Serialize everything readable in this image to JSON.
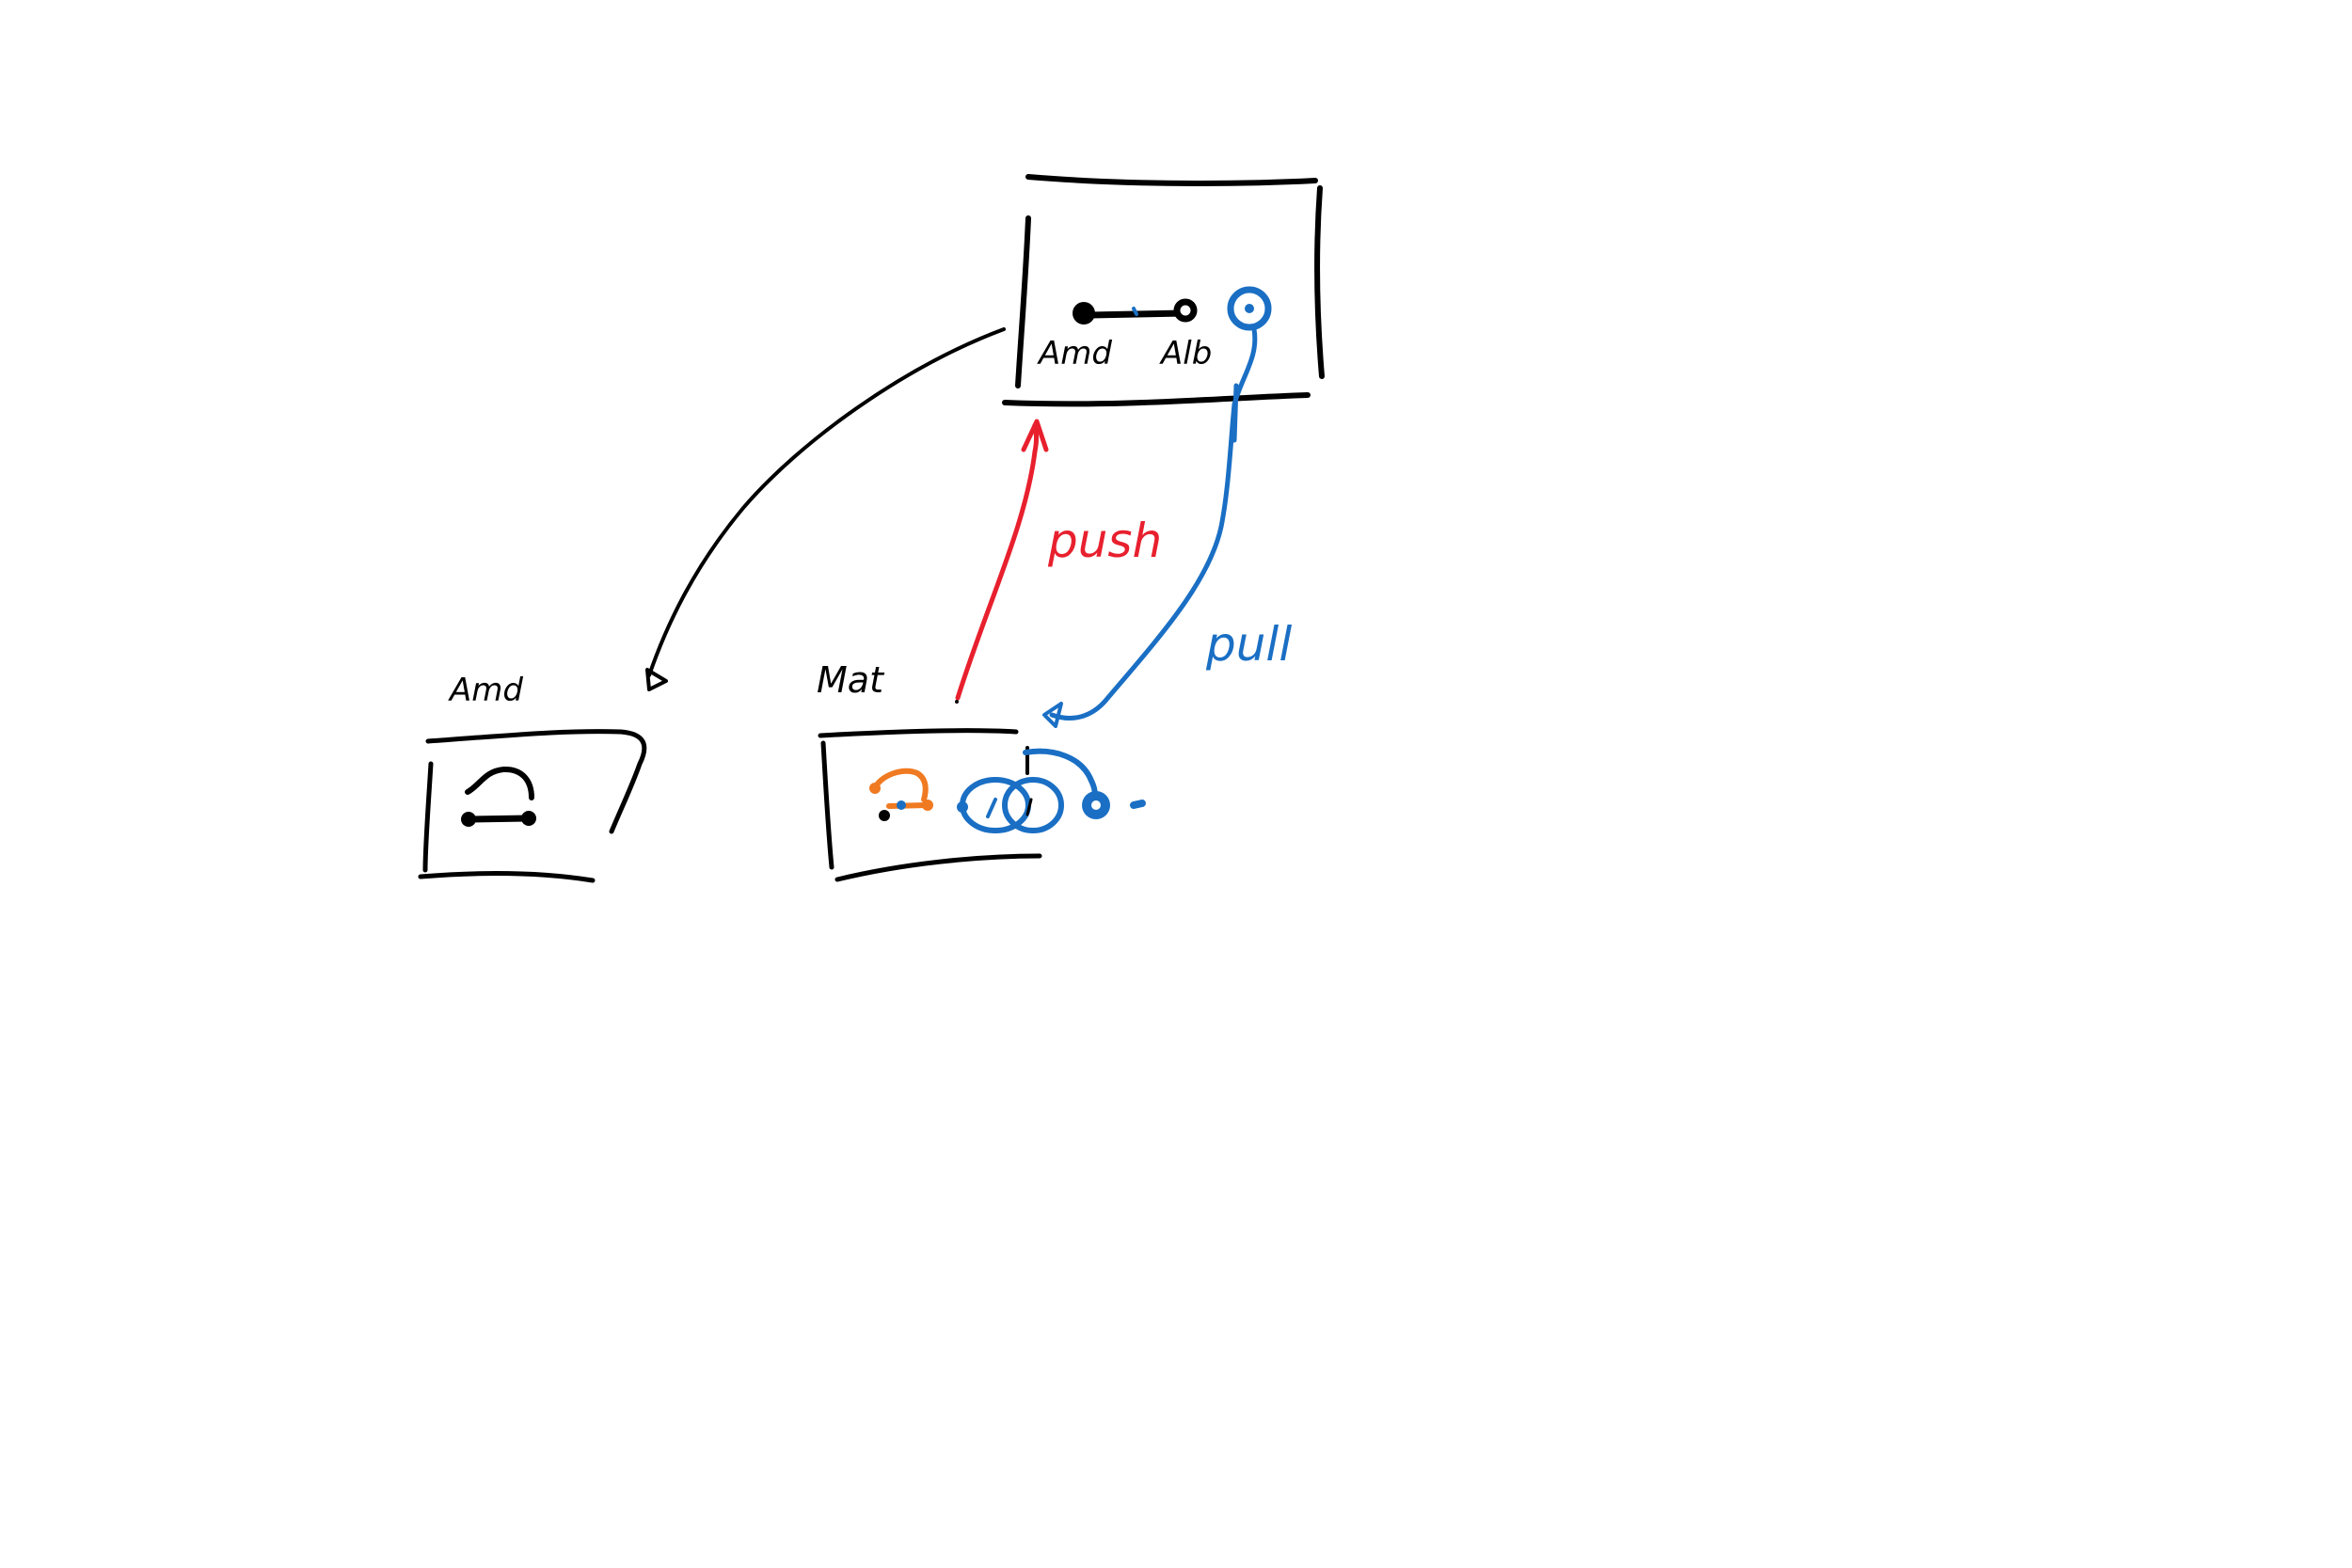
{
  "colors": {
    "ink": "#000000",
    "push": "#e8202e",
    "pull": "#1a6fc4",
    "local_commit": "#f07a21",
    "background": "#ffffff"
  },
  "labels": {
    "remote_commit_left": "Amd",
    "remote_commit_right": "Alb",
    "push": "push",
    "pull": "pull",
    "repo_left": "Amd",
    "repo_right": "Mat"
  }
}
